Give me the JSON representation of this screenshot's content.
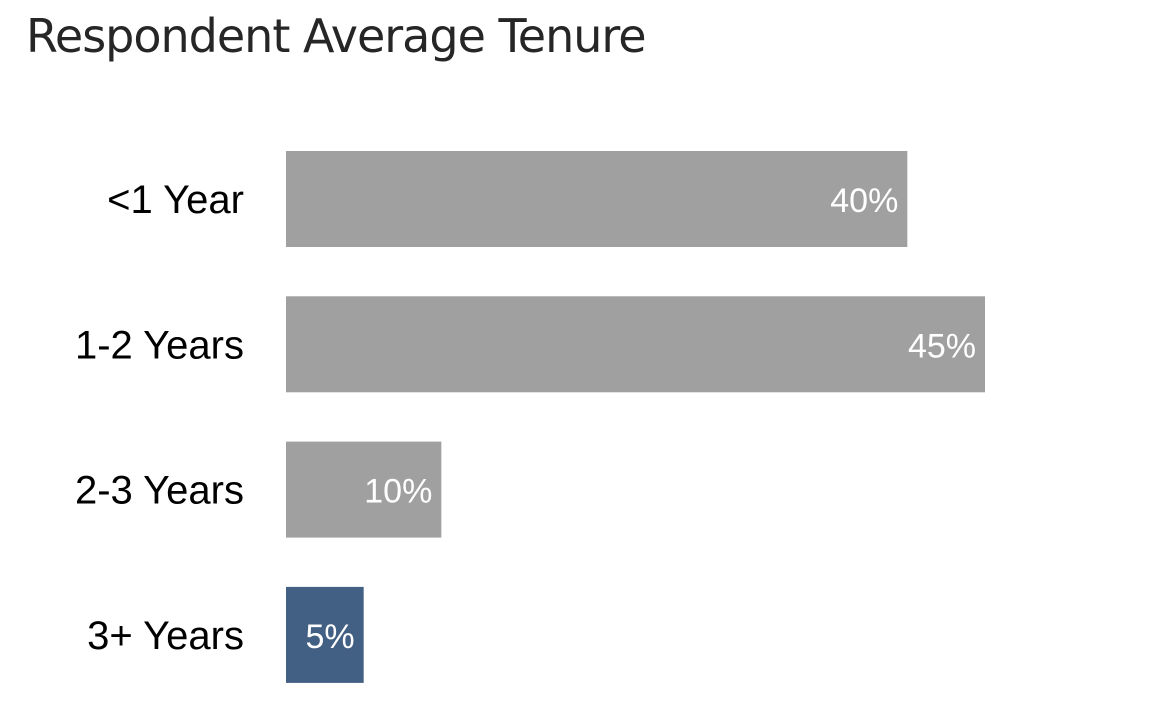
{
  "title": "Respondent Average Tenure",
  "chart_data": {
    "type": "bar",
    "orientation": "horizontal",
    "title": "Respondent Average Tenure",
    "categories": [
      "<1 Year",
      "1-2 Years",
      "2-3 Years",
      "3+ Years"
    ],
    "values": [
      40,
      45,
      10,
      5
    ],
    "value_labels": [
      "40%",
      "45%",
      "10%",
      "5%"
    ],
    "unit": "%",
    "xlim": [
      0,
      45
    ],
    "grid": false,
    "legend": "none",
    "colors": [
      "#a0a0a0",
      "#a0a0a0",
      "#a0a0a0",
      "#425f84"
    ]
  }
}
